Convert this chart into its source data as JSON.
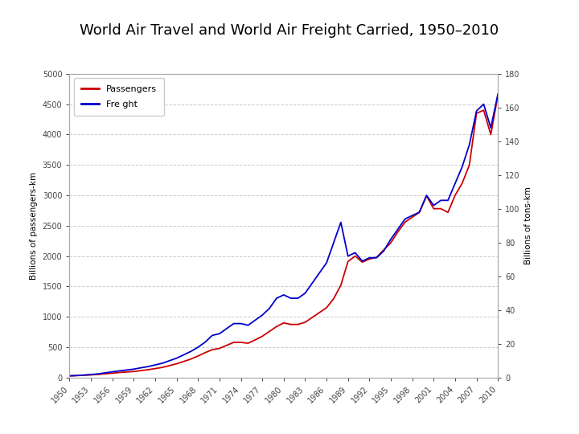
{
  "title": "World Air Travel and World Air Freight Carried, 1950–2010",
  "title_fontsize": 13,
  "title_bg_color": "#f2dede",
  "ylabel_left": "Billions of passengers-km",
  "ylabel_right": "Billions of tons-km",
  "ylim_left": [
    0,
    5000
  ],
  "ylim_right": [
    0,
    180
  ],
  "yticks_left": [
    0,
    500,
    1000,
    1500,
    2000,
    2500,
    3000,
    3500,
    4000,
    4500,
    5000
  ],
  "yticks_right": [
    0,
    20,
    40,
    60,
    80,
    100,
    120,
    140,
    160,
    180
  ],
  "xtick_labels": [
    "1950",
    "1953",
    "1956",
    "1959",
    "1962",
    "1965",
    "1968",
    "1971",
    "1974",
    "1977",
    "1980",
    "1983",
    "1986",
    "1989",
    "1992",
    "1995",
    "1998",
    "2001",
    "2004",
    "2007",
    "2010"
  ],
  "line_passenger_color": "#cc0000",
  "line_freight_color": "#0000cc",
  "legend_passengers": "Passengers",
  "legend_freight": "Fre ght",
  "grid_color": "#cccccc",
  "bg_outer": "#ffffff",
  "years": [
    1950,
    1951,
    1952,
    1953,
    1954,
    1955,
    1956,
    1957,
    1958,
    1959,
    1960,
    1961,
    1962,
    1963,
    1964,
    1965,
    1966,
    1967,
    1968,
    1969,
    1970,
    1971,
    1972,
    1973,
    1974,
    1975,
    1976,
    1977,
    1978,
    1979,
    1980,
    1981,
    1982,
    1983,
    1984,
    1985,
    1986,
    1987,
    1988,
    1989,
    1990,
    1991,
    1992,
    1993,
    1994,
    1995,
    1996,
    1997,
    1998,
    1999,
    2000,
    2001,
    2002,
    2003,
    2004,
    2005,
    2006,
    2007,
    2008,
    2009,
    2010
  ],
  "passengers": [
    28,
    33,
    38,
    44,
    52,
    62,
    72,
    84,
    92,
    100,
    115,
    130,
    148,
    168,
    196,
    228,
    265,
    305,
    355,
    410,
    460,
    480,
    530,
    580,
    580,
    565,
    620,
    680,
    760,
    840,
    900,
    875,
    875,
    910,
    990,
    1070,
    1150,
    1300,
    1520,
    1910,
    2000,
    1900,
    1950,
    1980,
    2100,
    2220,
    2400,
    2560,
    2640,
    2720,
    2990,
    2780,
    2780,
    2720,
    3000,
    3200,
    3500,
    4350,
    4400,
    4000,
    4650
  ],
  "freight": [
    1,
    1.2,
    1.5,
    1.8,
    2.2,
    2.8,
    3.4,
    4.0,
    4.5,
    5.0,
    5.8,
    6.5,
    7.5,
    8.5,
    10,
    11.5,
    13.5,
    15.5,
    18,
    21,
    25,
    26,
    29,
    32,
    32,
    31,
    34,
    37,
    41,
    47,
    49,
    47,
    47,
    50,
    56,
    62,
    68,
    80,
    92,
    72,
    74,
    69,
    71,
    71,
    75,
    82,
    88,
    94,
    96,
    98,
    108,
    102,
    105,
    105,
    115,
    125,
    138,
    158,
    162,
    148,
    168
  ]
}
